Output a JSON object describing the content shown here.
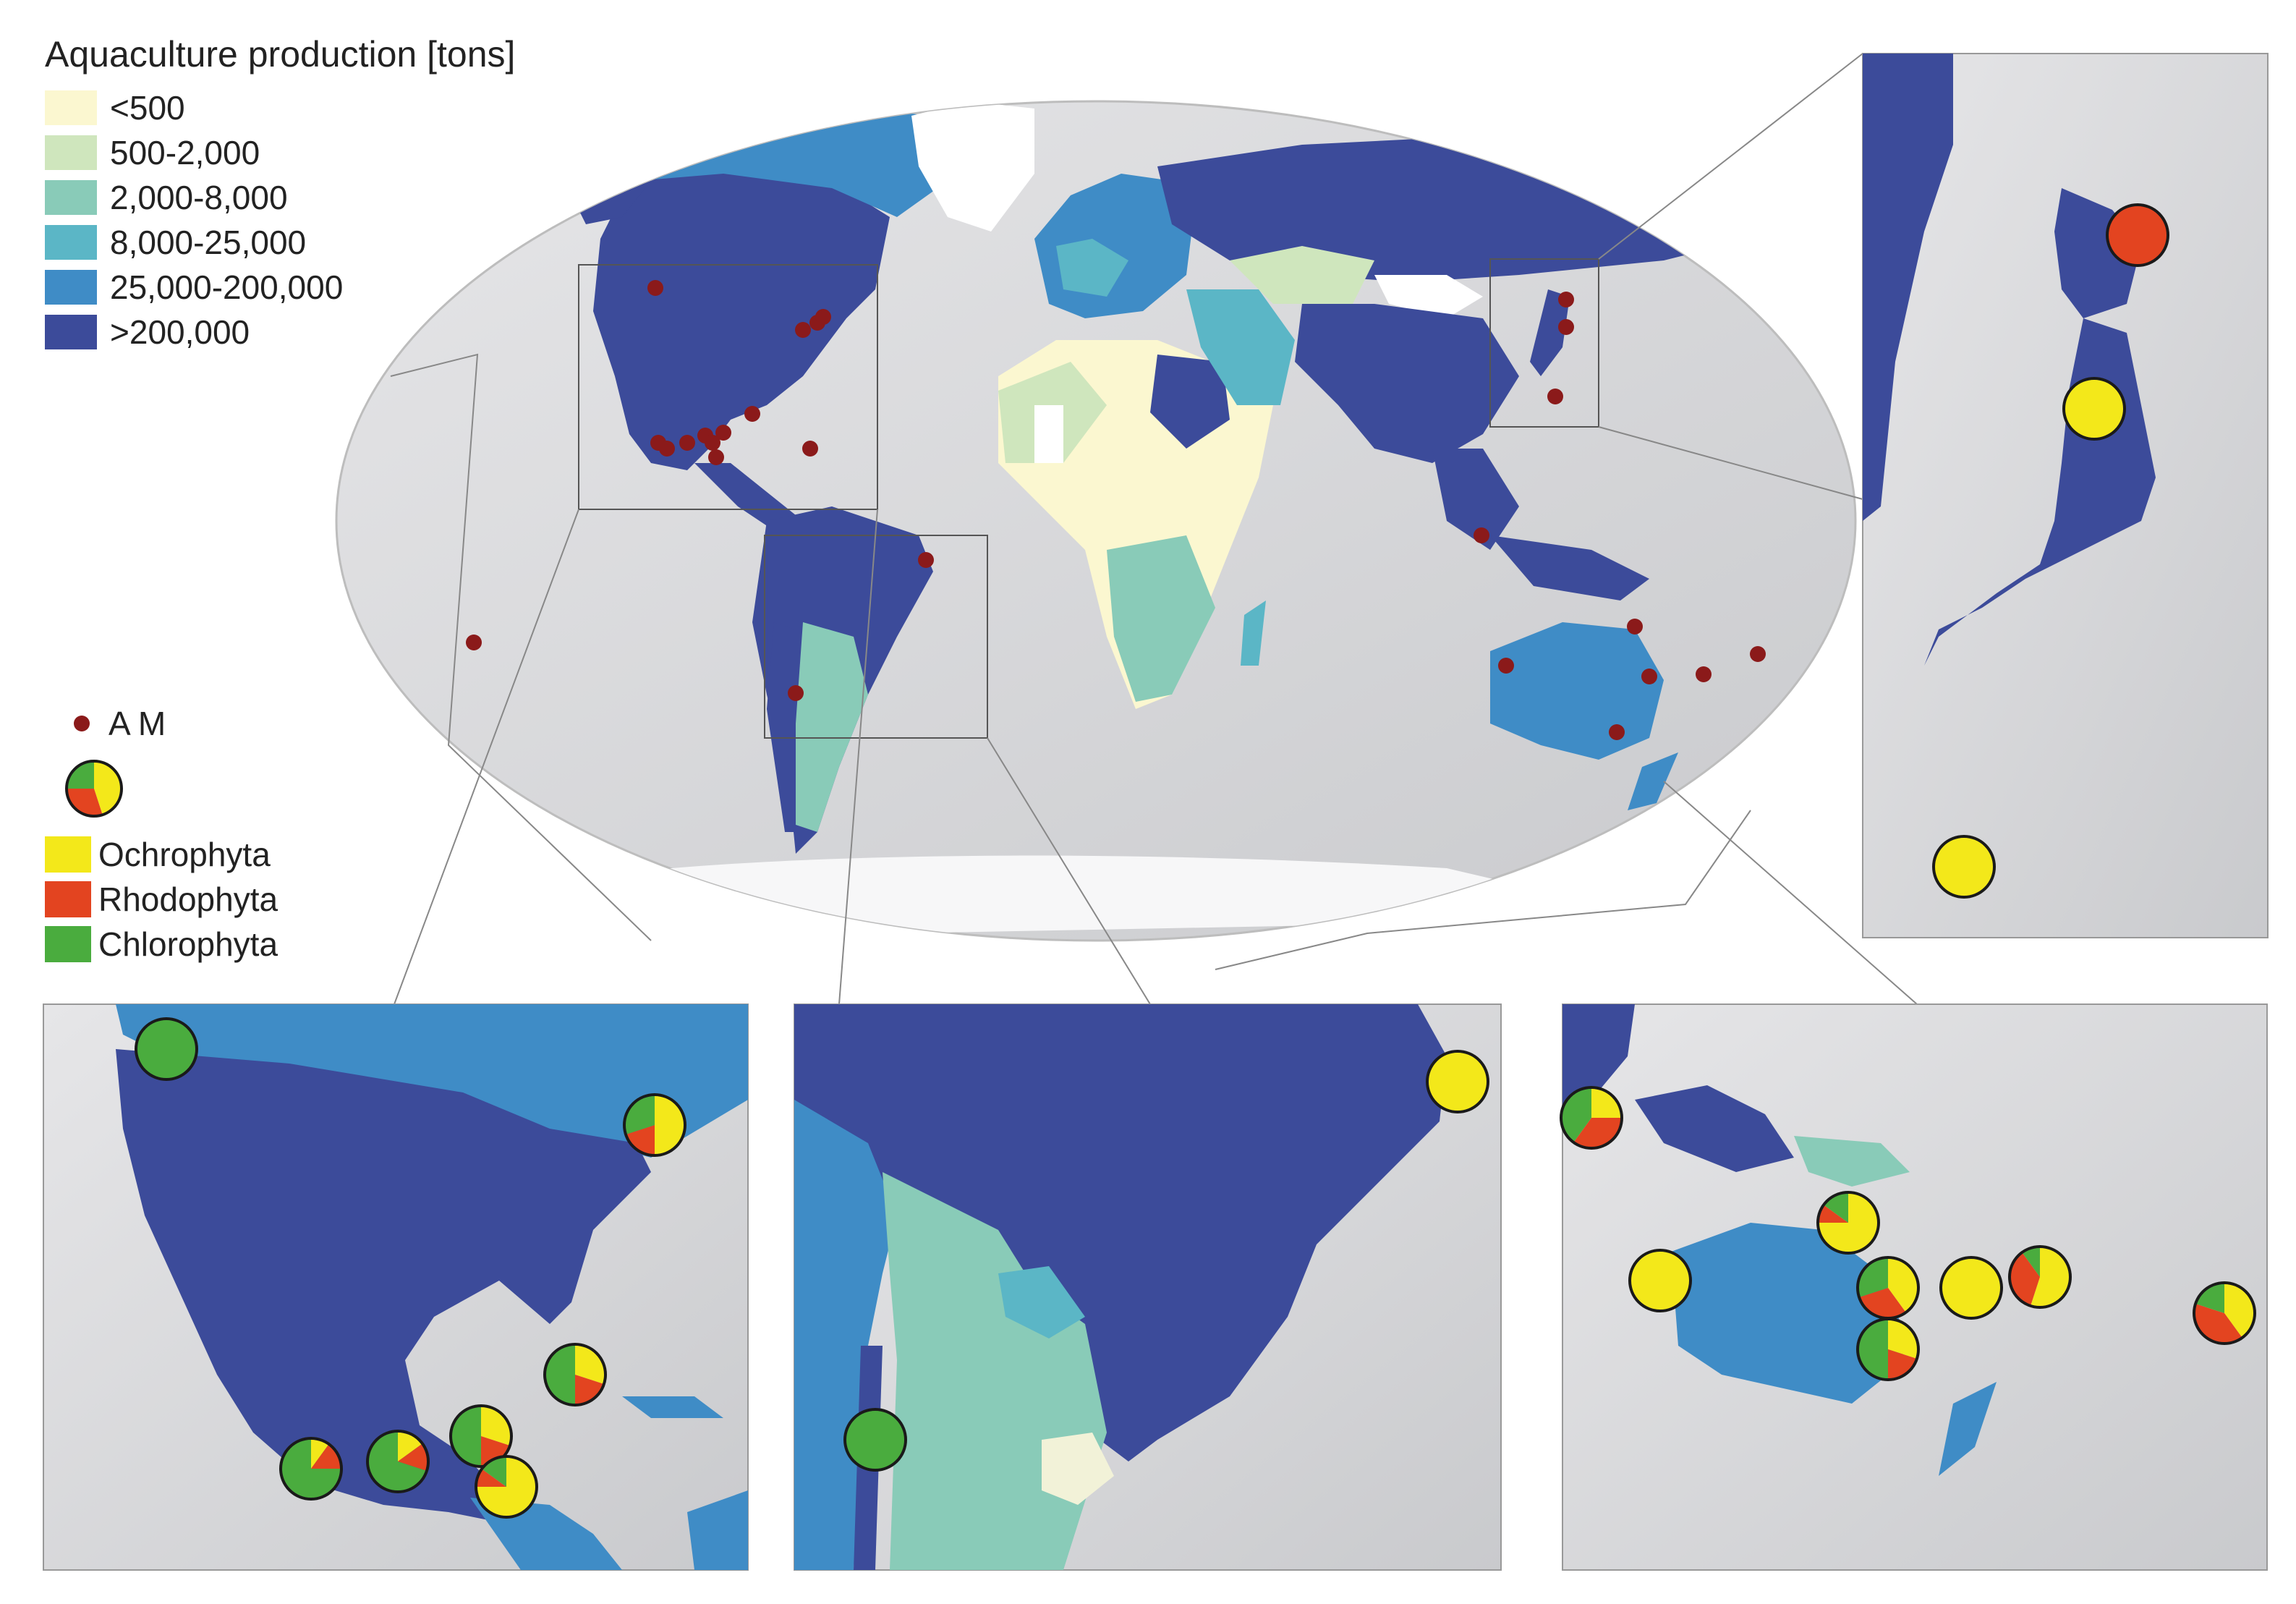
{
  "legend": {
    "title": "Aquaculture production [tons]",
    "classes": [
      {
        "label": "<500",
        "color": "#fbf7d0"
      },
      {
        "label": "500-2,000",
        "color": "#cfe6bd"
      },
      {
        "label": "2,000-8,000",
        "color": "#89cbb8"
      },
      {
        "label": "8,000-25,000",
        "color": "#5bb6c6"
      },
      {
        "label": "25,000-200,000",
        "color": "#3f8cc6"
      },
      {
        "label": ">200,000",
        "color": "#3c4b9a"
      }
    ]
  },
  "symbols": {
    "am_label": "A M",
    "am_color": "#8b1a1a",
    "phyla": [
      {
        "label": "Ochrophyta",
        "color": "#f3e81a"
      },
      {
        "label": "Rhodophyta",
        "color": "#e34420"
      },
      {
        "label": "Chlorophyta",
        "color": "#4aac3e"
      }
    ]
  },
  "insets": [
    {
      "region": "north-america",
      "sites": [
        {
          "shares": [
            0,
            0,
            1
          ]
        },
        {
          "shares": [
            0.5,
            0.2,
            0.3
          ]
        },
        {
          "shares": [
            0.3,
            0.2,
            0.5
          ]
        },
        {
          "shares": [
            0.1,
            0.15,
            0.75
          ]
        },
        {
          "shares": [
            0.15,
            0.15,
            0.7
          ]
        },
        {
          "shares": [
            0.3,
            0.2,
            0.5
          ]
        },
        {
          "shares": [
            0.75,
            0.1,
            0.15
          ]
        }
      ]
    },
    {
      "region": "south-america",
      "sites": [
        {
          "shares": [
            1,
            0,
            0
          ]
        },
        {
          "shares": [
            0,
            0,
            1
          ]
        }
      ]
    },
    {
      "region": "oceania",
      "sites": [
        {
          "shares": [
            0.25,
            0.35,
            0.4
          ]
        },
        {
          "shares": [
            0.75,
            0.1,
            0.15
          ]
        },
        {
          "shares": [
            1,
            0,
            0
          ]
        },
        {
          "shares": [
            0.4,
            0.3,
            0.3
          ]
        },
        {
          "shares": [
            0.3,
            0.2,
            0.5
          ]
        },
        {
          "shares": [
            1,
            0,
            0
          ]
        },
        {
          "shares": [
            0.55,
            0.35,
            0.1
          ]
        },
        {
          "shares": [
            0.4,
            0.4,
            0.2
          ]
        }
      ]
    },
    {
      "region": "japan",
      "sites": [
        {
          "shares": [
            0,
            1,
            0
          ]
        },
        {
          "shares": [
            1,
            0,
            0
          ]
        },
        {
          "shares": [
            1,
            0,
            0
          ]
        }
      ]
    }
  ]
}
